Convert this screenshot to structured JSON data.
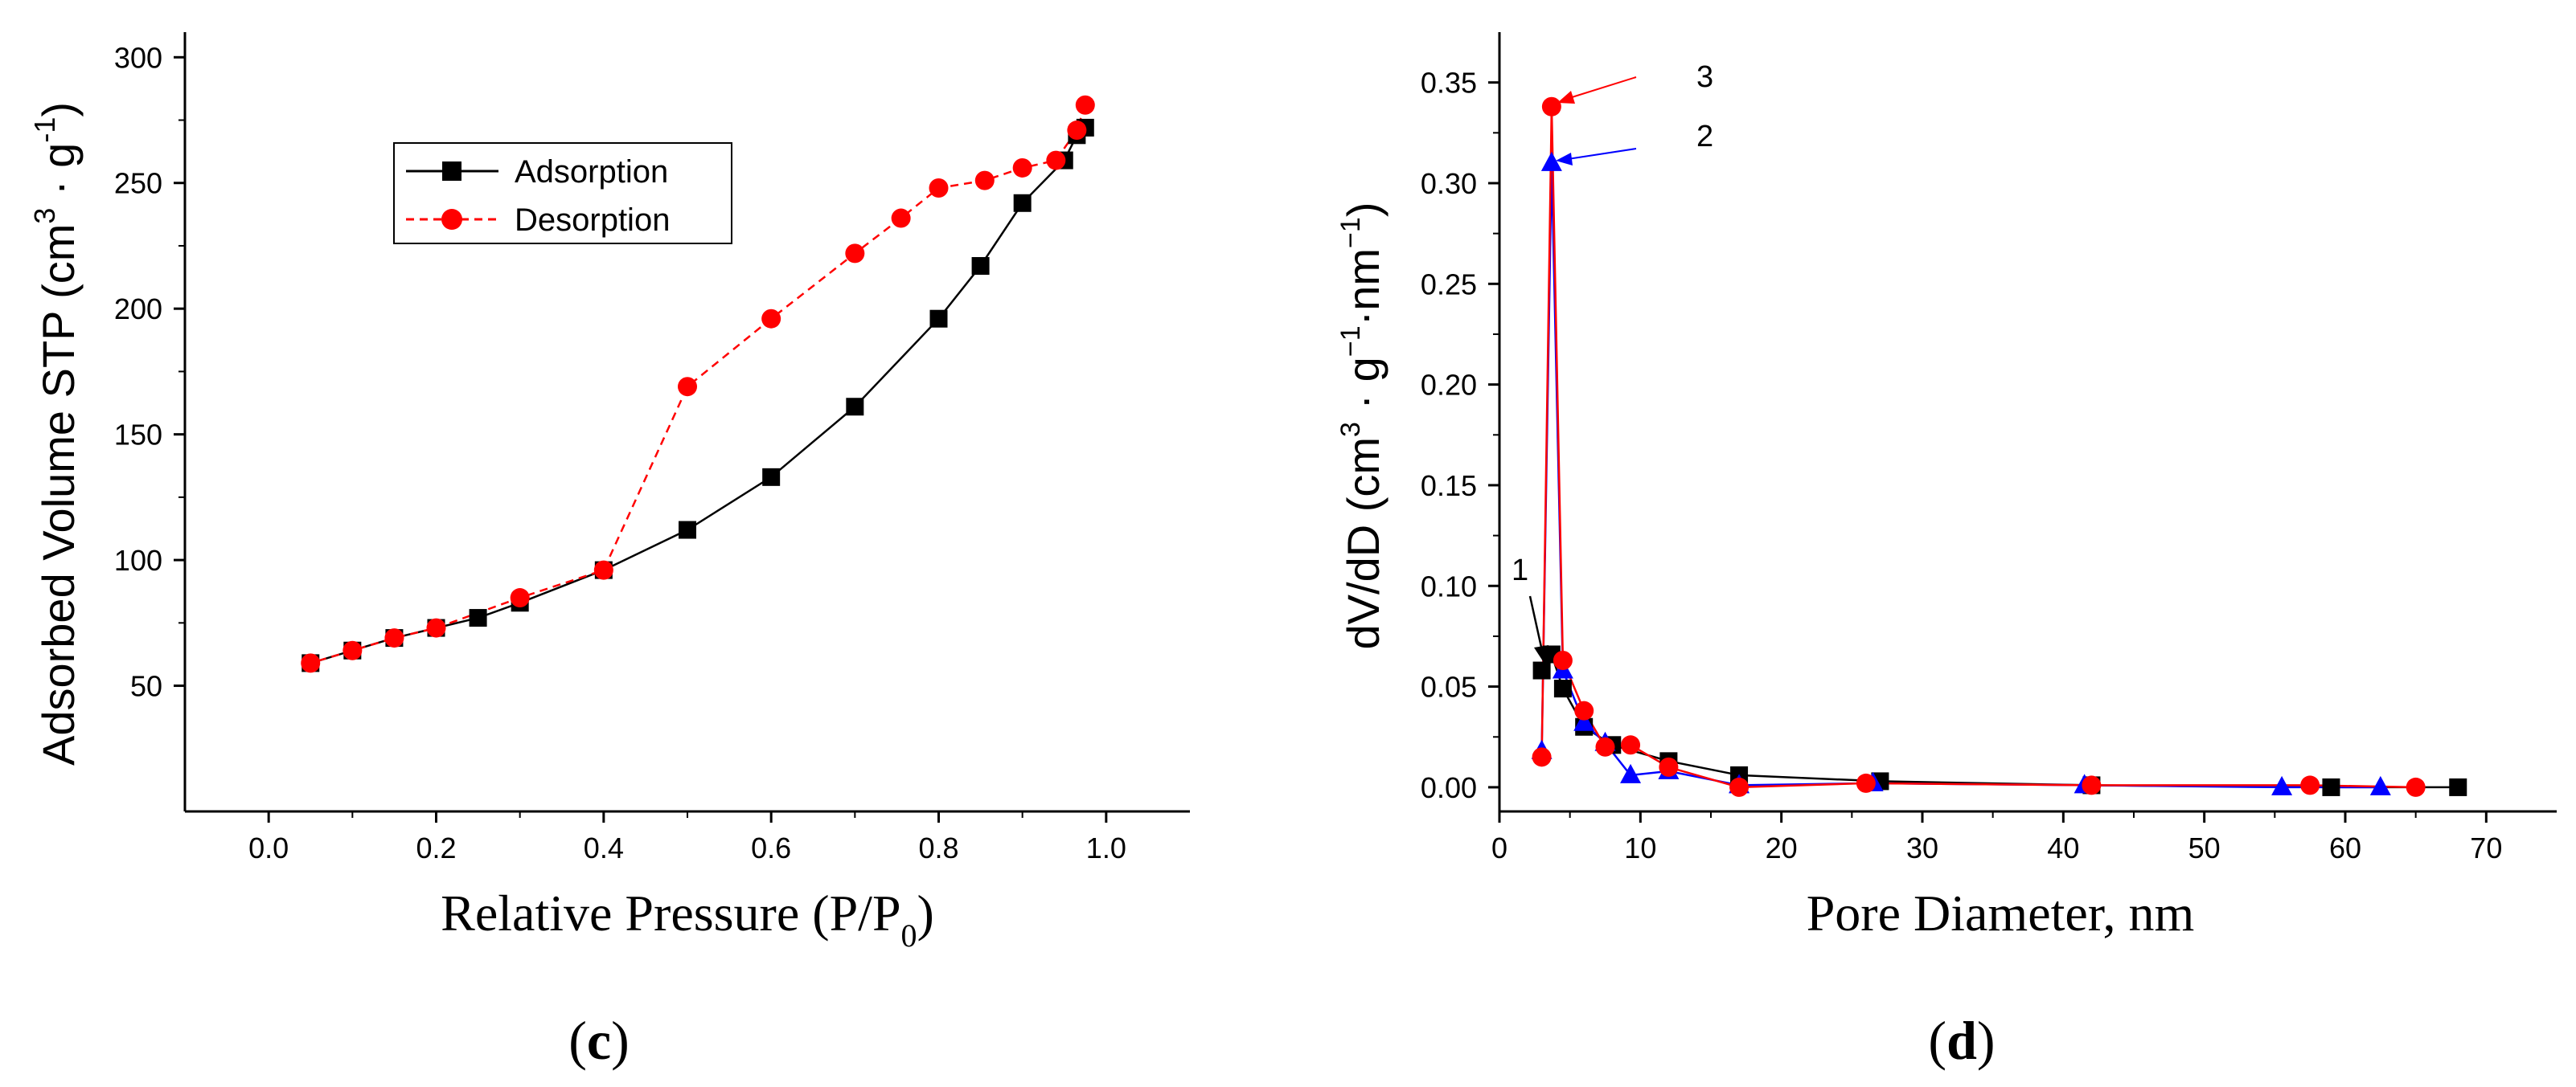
{
  "chart_data": [
    {
      "id": "c",
      "type": "line",
      "caption": {
        "open": "(",
        "letter": "c",
        "close": ")"
      },
      "xlabel": {
        "main": "Relative Pressure (P/P",
        "sub": "0",
        "end": ")"
      },
      "ylabel": {
        "main": "Adsorbed Volume STP  (cm",
        "sup1": "3",
        "mid": " · g",
        "sup2": "-1",
        "end": ")"
      },
      "xlim": [
        -0.1,
        1.1
      ],
      "ylim": [
        0,
        310
      ],
      "xticks": [
        0.0,
        0.2,
        0.4,
        0.6,
        0.8,
        1.0
      ],
      "xtick_labels": [
        "0.0",
        "0.2",
        "0.4",
        "0.6",
        "0.8",
        "1.0"
      ],
      "yticks": [
        50,
        100,
        150,
        200,
        250,
        300
      ],
      "ytick_labels": [
        "50",
        "100",
        "150",
        "200",
        "250",
        "300"
      ],
      "legend": {
        "position": "top-left",
        "entries": [
          "Adsorption",
          "Desorption"
        ]
      },
      "series": [
        {
          "name": "Adsorption",
          "color": "#000000",
          "marker": "square",
          "line": "solid",
          "points": [
            [
              0.05,
              59
            ],
            [
              0.1,
              64
            ],
            [
              0.15,
              69
            ],
            [
              0.2,
              73
            ],
            [
              0.25,
              77
            ],
            [
              0.3,
              83
            ],
            [
              0.4,
              96
            ],
            [
              0.5,
              112
            ],
            [
              0.6,
              133
            ],
            [
              0.7,
              161
            ],
            [
              0.8,
              196
            ],
            [
              0.85,
              217
            ],
            [
              0.9,
              242
            ],
            [
              0.95,
              259
            ],
            [
              0.965,
              269
            ],
            [
              0.975,
              272
            ]
          ]
        },
        {
          "name": "Desorption",
          "color": "#ff0000",
          "marker": "circle",
          "line": "dashed",
          "points": [
            [
              0.975,
              281
            ],
            [
              0.965,
              271
            ],
            [
              0.94,
              259
            ],
            [
              0.9,
              256
            ],
            [
              0.855,
              251
            ],
            [
              0.8,
              248
            ],
            [
              0.755,
              236
            ],
            [
              0.7,
              222
            ],
            [
              0.6,
              196
            ],
            [
              0.5,
              169
            ],
            [
              0.4,
              96
            ],
            [
              0.3,
              85
            ],
            [
              0.2,
              73
            ],
            [
              0.15,
              69
            ],
            [
              0.1,
              64
            ],
            [
              0.05,
              59
            ]
          ]
        }
      ]
    },
    {
      "id": "d",
      "type": "line",
      "caption": {
        "open": "(",
        "letter": "d",
        "close": ")"
      },
      "xlabel": {
        "main": "Pore Diameter, nm"
      },
      "ylabel": {
        "main": "dV/dD (cm",
        "sup1": "3",
        "mid": " · g",
        "sup2": "−1",
        "mid2": "·nm",
        "sup3": "−1",
        "end": ")"
      },
      "xlim": [
        0,
        75
      ],
      "ylim": [
        -0.012,
        0.375
      ],
      "xticks": [
        0,
        10,
        20,
        30,
        40,
        50,
        60,
        70
      ],
      "xtick_labels": [
        "0",
        "10",
        "20",
        "30",
        "40",
        "50",
        "60",
        "70"
      ],
      "yticks": [
        0.0,
        0.05,
        0.1,
        0.15,
        0.2,
        0.25,
        0.3,
        0.35
      ],
      "ytick_labels": [
        "0.00",
        "0.05",
        "0.10",
        "0.15",
        "0.20",
        "0.25",
        "0.30",
        "0.35"
      ],
      "annotations": [
        {
          "text": "1",
          "series": 0
        },
        {
          "text": "2",
          "series": 1
        },
        {
          "text": "3",
          "series": 2
        }
      ],
      "series": [
        {
          "name": "1",
          "color": "#000000",
          "marker": "square",
          "points": [
            [
              3.0,
              0.058
            ],
            [
              3.7,
              0.066
            ],
            [
              4.5,
              0.049
            ],
            [
              6.0,
              0.03
            ],
            [
              8.0,
              0.021
            ],
            [
              12.0,
              0.013
            ],
            [
              17.0,
              0.006
            ],
            [
              27.0,
              0.003
            ],
            [
              42.0,
              0.001
            ],
            [
              59.0,
              0.0
            ],
            [
              68.0,
              0.0
            ]
          ]
        },
        {
          "name": "2",
          "color": "#0000ff",
          "marker": "triangle",
          "points": [
            [
              3.0,
              0.018
            ],
            [
              3.7,
              0.31
            ],
            [
              4.5,
              0.058
            ],
            [
              6.0,
              0.032
            ],
            [
              7.5,
              0.022
            ],
            [
              9.3,
              0.006
            ],
            [
              12.0,
              0.008
            ],
            [
              17.0,
              0.001
            ],
            [
              26.5,
              0.002
            ],
            [
              41.5,
              0.001
            ],
            [
              55.5,
              0.0
            ],
            [
              62.5,
              0.0
            ]
          ]
        },
        {
          "name": "3",
          "color": "#ff0000",
          "marker": "circle",
          "points": [
            [
              3.0,
              0.015
            ],
            [
              3.7,
              0.338
            ],
            [
              4.5,
              0.063
            ],
            [
              6.0,
              0.038
            ],
            [
              7.5,
              0.02
            ],
            [
              9.3,
              0.021
            ],
            [
              12.0,
              0.01
            ],
            [
              17.0,
              0.0
            ],
            [
              26.0,
              0.002
            ],
            [
              42.0,
              0.001
            ],
            [
              57.5,
              0.001
            ],
            [
              65.0,
              0.0
            ]
          ]
        }
      ]
    }
  ]
}
